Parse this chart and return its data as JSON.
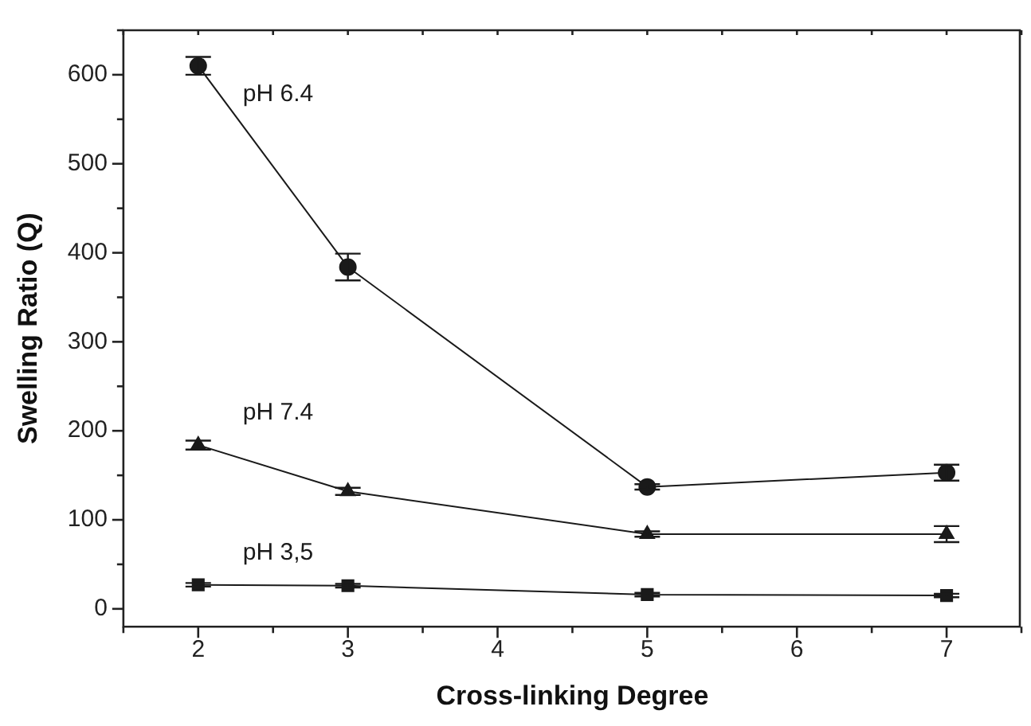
{
  "chart_data": {
    "type": "line",
    "xlabel": "Cross-linking Degree",
    "ylabel": "Swelling Ratio (Q)",
    "x": [
      2,
      3,
      5,
      7
    ],
    "xlim": [
      1.5,
      7.5
    ],
    "xticks": [
      2,
      3,
      4,
      5,
      6,
      7
    ],
    "ylim": [
      -20,
      650
    ],
    "yticks": [
      0,
      100,
      200,
      300,
      400,
      500,
      600
    ],
    "grid": false,
    "legend": false,
    "line_style": "solid",
    "series": [
      {
        "name": "pH 6.4",
        "color": "#1a1a1a",
        "marker": "circle",
        "values": [
          610,
          384,
          137,
          153
        ],
        "errors": [
          10,
          15,
          3,
          9
        ]
      },
      {
        "name": "pH 7.4",
        "color": "#1a1a1a",
        "marker": "triangle",
        "values": [
          184,
          132,
          84,
          84
        ],
        "errors": [
          5,
          4,
          3,
          9
        ]
      },
      {
        "name": "pH 3,5",
        "color": "#1a1a1a",
        "marker": "square",
        "values": [
          27,
          26,
          16,
          15
        ],
        "errors": [
          2,
          2,
          2,
          2
        ]
      }
    ]
  }
}
